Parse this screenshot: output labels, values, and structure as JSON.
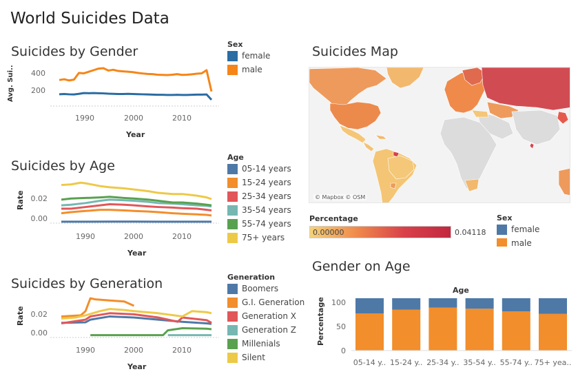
{
  "dashboard": {
    "title": "World Suicides Data"
  },
  "gender_chart": {
    "title": "Suicides by Gender",
    "ylabel": "Avg. Sui..",
    "xlabel": "Year",
    "yticks": [
      "400",
      "200"
    ],
    "xticks": [
      "1990",
      "2000",
      "2010"
    ]
  },
  "gender_legend": {
    "title": "Sex",
    "items": [
      {
        "label": "female",
        "color": "#2a6ca3"
      },
      {
        "label": "male",
        "color": "#f58518"
      }
    ]
  },
  "age_chart": {
    "title": "Suicides by Age",
    "ylabel": "Rate",
    "xlabel": "Year",
    "yticks": [
      "0.02",
      "0.00"
    ],
    "xticks": [
      "1990",
      "2000",
      "2010"
    ]
  },
  "age_legend": {
    "title": "Age",
    "items": [
      {
        "label": "05-14 years",
        "color": "#4e79a7"
      },
      {
        "label": "15-24 years",
        "color": "#f28e2b"
      },
      {
        "label": "25-34 years",
        "color": "#e15759"
      },
      {
        "label": "35-54 years",
        "color": "#76b7b2"
      },
      {
        "label": "55-74 years",
        "color": "#59a14f"
      },
      {
        "label": "75+ years",
        "color": "#edc948"
      }
    ]
  },
  "generation_chart": {
    "title": "Suicides by Generation",
    "ylabel": "Rate",
    "xlabel": "Year",
    "yticks": [
      "0.02",
      "0.00"
    ],
    "xticks": [
      "1990",
      "2000",
      "2010"
    ]
  },
  "generation_legend": {
    "title": "Generation",
    "items": [
      {
        "label": "Boomers",
        "color": "#4e79a7"
      },
      {
        "label": "G.I. Generation",
        "color": "#f28e2b"
      },
      {
        "label": "Generation X",
        "color": "#e15759"
      },
      {
        "label": "Generation Z",
        "color": "#76b7b2"
      },
      {
        "label": "Millenials",
        "color": "#59a14f"
      },
      {
        "label": "Silent",
        "color": "#edc948"
      }
    ]
  },
  "map": {
    "title": "Suicides Map",
    "attribution": "© Mapbox © OSM",
    "color_legend_title": "Percentage",
    "min_label": "0.00000",
    "max_label": "0.04118"
  },
  "map_sex_legend": {
    "title": "Sex",
    "items": [
      {
        "label": "female",
        "color": "#4e79a7"
      },
      {
        "label": "male",
        "color": "#f28e2b"
      }
    ]
  },
  "bar_chart_meta": {
    "title": "Gender on Age",
    "header": "Age",
    "ylabel": "Percentage",
    "yticks": [
      "100",
      "50",
      "0"
    ]
  },
  "chart_data": [
    {
      "type": "line",
      "title": "Suicides by Gender",
      "xlabel": "Year",
      "ylabel": "Avg. Sui..",
      "xlim": [
        1985,
        2016
      ],
      "ylim": [
        0,
        480
      ],
      "series": [
        {
          "name": "female",
          "color": "#2a6ca3",
          "x": [
            1985,
            1986,
            1987,
            1988,
            1989,
            1990,
            1991,
            1992,
            1993,
            1994,
            1995,
            1996,
            1997,
            1998,
            1999,
            2000,
            2001,
            2002,
            2003,
            2004,
            2005,
            2006,
            2007,
            2008,
            2009,
            2010,
            2011,
            2012,
            2013,
            2014,
            2015,
            2016
          ],
          "y": [
            115,
            118,
            114,
            112,
            120,
            130,
            128,
            130,
            128,
            126,
            122,
            120,
            118,
            118,
            120,
            118,
            116,
            114,
            112,
            110,
            108,
            108,
            106,
            106,
            108,
            106,
            106,
            108,
            110,
            110,
            112,
            45
          ]
        },
        {
          "name": "male",
          "color": "#f58518",
          "x": [
            1985,
            1986,
            1987,
            1988,
            1989,
            1990,
            1991,
            1992,
            1993,
            1994,
            1995,
            1996,
            1997,
            1998,
            1999,
            2000,
            2001,
            2002,
            2003,
            2004,
            2005,
            2006,
            2007,
            2008,
            2009,
            2010,
            2011,
            2012,
            2013,
            2014,
            2015,
            2016
          ],
          "y": [
            295,
            305,
            290,
            300,
            385,
            380,
            400,
            420,
            440,
            445,
            415,
            425,
            410,
            405,
            400,
            395,
            385,
            378,
            372,
            370,
            362,
            360,
            358,
            362,
            370,
            360,
            362,
            368,
            375,
            380,
            420,
            150
          ]
        }
      ]
    },
    {
      "type": "line",
      "title": "Suicides by Age",
      "xlabel": "Year",
      "ylabel": "Rate",
      "xlim": [
        1985,
        2016
      ],
      "ylim": [
        -0.003,
        0.036
      ],
      "series": [
        {
          "name": "05-14 years",
          "color": "#4e79a7",
          "x": [
            1985,
            1990,
            1995,
            2000,
            2005,
            2010,
            2015,
            2016
          ],
          "y": [
            -0.0005,
            -0.0005,
            -0.0004,
            -0.0004,
            -0.0005,
            -0.0005,
            -0.0005,
            -0.0005
          ]
        },
        {
          "name": "15-24 years",
          "color": "#f28e2b",
          "x": [
            1985,
            1987,
            1990,
            1993,
            1995,
            1998,
            2000,
            2003,
            2005,
            2008,
            2010,
            2013,
            2015,
            2016
          ],
          "y": [
            0.007,
            0.008,
            0.009,
            0.01,
            0.01,
            0.0095,
            0.009,
            0.0085,
            0.008,
            0.007,
            0.0065,
            0.006,
            0.0055,
            0.005
          ]
        },
        {
          "name": "25-34 years",
          "color": "#e15759",
          "x": [
            1985,
            1987,
            1990,
            1993,
            1995,
            1998,
            2000,
            2003,
            2005,
            2008,
            2010,
            2013,
            2015,
            2016
          ],
          "y": [
            0.011,
            0.011,
            0.0125,
            0.014,
            0.015,
            0.0145,
            0.014,
            0.013,
            0.0125,
            0.012,
            0.0115,
            0.011,
            0.01,
            0.0095
          ]
        },
        {
          "name": "35-54 years",
          "color": "#76b7b2",
          "x": [
            1985,
            1987,
            1990,
            1993,
            1995,
            1998,
            2000,
            2003,
            2005,
            2008,
            2010,
            2013,
            2015,
            2016
          ],
          "y": [
            0.014,
            0.0145,
            0.016,
            0.018,
            0.019,
            0.0185,
            0.018,
            0.017,
            0.016,
            0.0155,
            0.015,
            0.014,
            0.0135,
            0.013
          ]
        },
        {
          "name": "55-74 years",
          "color": "#59a14f",
          "x": [
            1985,
            1987,
            1990,
            1993,
            1995,
            1998,
            2000,
            2003,
            2005,
            2008,
            2010,
            2013,
            2015,
            2016
          ],
          "y": [
            0.019,
            0.02,
            0.0205,
            0.021,
            0.0215,
            0.0205,
            0.02,
            0.019,
            0.018,
            0.0165,
            0.0165,
            0.0155,
            0.0145,
            0.014
          ]
        },
        {
          "name": "75+ years",
          "color": "#edc948",
          "x": [
            1985,
            1987,
            1989,
            1990,
            1993,
            1995,
            1998,
            2000,
            2003,
            2005,
            2008,
            2010,
            2013,
            2015,
            2016
          ],
          "y": [
            0.032,
            0.0325,
            0.034,
            0.0335,
            0.031,
            0.03,
            0.029,
            0.028,
            0.0265,
            0.025,
            0.024,
            0.024,
            0.0225,
            0.021,
            0.0195
          ]
        }
      ]
    },
    {
      "type": "line",
      "title": "Suicides by Generation",
      "xlabel": "Year",
      "ylabel": "Rate",
      "xlim": [
        1985,
        2016
      ],
      "ylim": [
        -0.004,
        0.036
      ],
      "series": [
        {
          "name": "Boomers",
          "color": "#4e79a7",
          "x": [
            1985,
            1990,
            1991,
            1995,
            2000,
            2005,
            2010,
            2015,
            2016
          ],
          "y": [
            0.011,
            0.0115,
            0.014,
            0.017,
            0.016,
            0.014,
            0.012,
            0.0105,
            0.01
          ]
        },
        {
          "name": "G.I. Generation",
          "color": "#f28e2b",
          "x": [
            1985,
            1989,
            1990,
            1991,
            1992,
            1995,
            1998,
            2000
          ],
          "y": [
            0.017,
            0.018,
            0.022,
            0.034,
            0.033,
            0.032,
            0.031,
            0.027
          ]
        },
        {
          "name": "Generation X",
          "color": "#e15759",
          "x": [
            1985,
            1990,
            1991,
            1995,
            2000,
            2005,
            2009,
            2010,
            2015,
            2016
          ],
          "y": [
            0.0105,
            0.014,
            0.017,
            0.02,
            0.019,
            0.016,
            0.012,
            0.016,
            0.0135,
            0.011
          ]
        },
        {
          "name": "Generation Z",
          "color": "#76b7b2",
          "x": [
            2007,
            2016
          ],
          "y": [
            -0.0005,
            -0.0005
          ]
        },
        {
          "name": "Millenials",
          "color": "#59a14f",
          "x": [
            1991,
            2000,
            2006,
            2007,
            2010,
            2015,
            2016
          ],
          "y": [
            -0.0005,
            -0.0005,
            -0.0005,
            0.004,
            0.006,
            0.0055,
            0.005
          ]
        },
        {
          "name": "Silent",
          "color": "#edc948",
          "x": [
            1985,
            1988,
            1990,
            1993,
            1995,
            1998,
            2000,
            2005,
            2010,
            2012,
            2015,
            2016
          ],
          "y": [
            0.015,
            0.016,
            0.018,
            0.022,
            0.024,
            0.023,
            0.022,
            0.02,
            0.017,
            0.022,
            0.021,
            0.02
          ]
        }
      ]
    },
    {
      "type": "bar",
      "title": "Gender on Age",
      "xlabel": "Age",
      "ylabel": "Percentage",
      "ylim": [
        0,
        110
      ],
      "stacked": true,
      "categories": [
        "05-14 y..",
        "15-24 y..",
        "25-34 y..",
        "35-54 y..",
        "55-74 y..",
        "75+ yea.."
      ],
      "series": [
        {
          "name": "male",
          "color": "#f28e2b",
          "values": [
            71,
            78,
            82,
            80,
            75,
            70
          ]
        },
        {
          "name": "female",
          "color": "#4e79a7",
          "values": [
            29,
            22,
            18,
            20,
            25,
            30
          ]
        }
      ]
    }
  ]
}
